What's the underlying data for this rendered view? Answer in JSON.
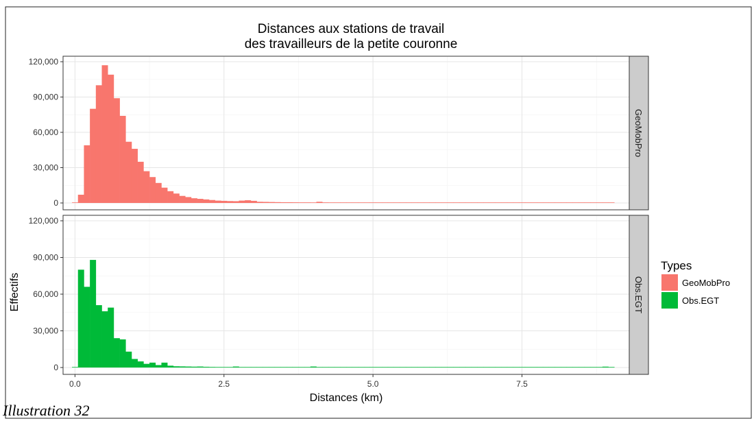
{
  "caption": "Illustration 32",
  "chart_data": {
    "type": "bar",
    "title": [
      "Distances aux stations de travail",
      "des travailleurs de la petite couronne"
    ],
    "xlabel": "Distances (km)",
    "ylabel": "Effectifs",
    "xlim": [
      -0.2,
      9.3
    ],
    "ylim": [
      0,
      120000
    ],
    "x_ticks": [
      0.0,
      2.5,
      5.0,
      7.5
    ],
    "x_tick_labels": [
      "0.0",
      "2.5",
      "5.0",
      "7.5"
    ],
    "y_ticks": [
      0,
      30000,
      60000,
      90000,
      120000
    ],
    "y_tick_labels": [
      "0",
      "30,000",
      "60,000",
      "90,000",
      "120,000"
    ],
    "grid": true,
    "bin_width": 0.1,
    "x_start": -0.05,
    "legend": {
      "title": "Types",
      "position": "right",
      "entries": [
        {
          "name": "GeoMobPro",
          "color": "#F8766D"
        },
        {
          "name": "Obs.EGT",
          "color": "#00BA38"
        }
      ]
    },
    "panels": [
      {
        "strip": "GeoMobPro",
        "color": "#F8766D",
        "values": [
          0,
          7000,
          49000,
          80000,
          100000,
          117000,
          109000,
          89000,
          74000,
          52000,
          46000,
          35000,
          27000,
          22000,
          17000,
          13000,
          10000,
          8000,
          6000,
          5000,
          4000,
          3500,
          3000,
          2500,
          2000,
          1800,
          1600,
          1500,
          2000,
          2300,
          1800,
          1000,
          900,
          800,
          700,
          600,
          600,
          550,
          500,
          500,
          400,
          1000,
          500,
          400,
          400,
          350,
          350,
          300,
          300,
          300,
          300,
          300,
          300,
          250,
          250,
          250,
          250,
          250,
          250,
          250,
          250,
          250,
          250,
          250,
          250,
          250,
          250,
          250,
          250,
          250,
          250,
          250,
          250,
          250,
          250,
          250,
          250,
          250,
          250,
          250,
          250,
          250,
          250,
          250,
          250,
          250,
          250,
          250,
          250,
          250,
          300
        ]
      },
      {
        "strip": "Obs.EGT",
        "color": "#00BA38",
        "values": [
          0,
          80000,
          66000,
          88000,
          51000,
          46000,
          49000,
          24000,
          23000,
          13000,
          7000,
          5000,
          3000,
          4000,
          2000,
          4000,
          1500,
          1000,
          900,
          800,
          700,
          800,
          600,
          500,
          400,
          400,
          400,
          800,
          400,
          300,
          300,
          300,
          300,
          300,
          300,
          300,
          300,
          300,
          300,
          400,
          800,
          300,
          300,
          300,
          300,
          300,
          300,
          300,
          300,
          300,
          300,
          300,
          300,
          300,
          300,
          300,
          300,
          300,
          300,
          300,
          300,
          300,
          300,
          300,
          300,
          300,
          300,
          300,
          300,
          300,
          300,
          300,
          300,
          300,
          300,
          300,
          300,
          300,
          300,
          300,
          300,
          300,
          300,
          300,
          300,
          300,
          300,
          300,
          300,
          700,
          400
        ]
      }
    ]
  }
}
